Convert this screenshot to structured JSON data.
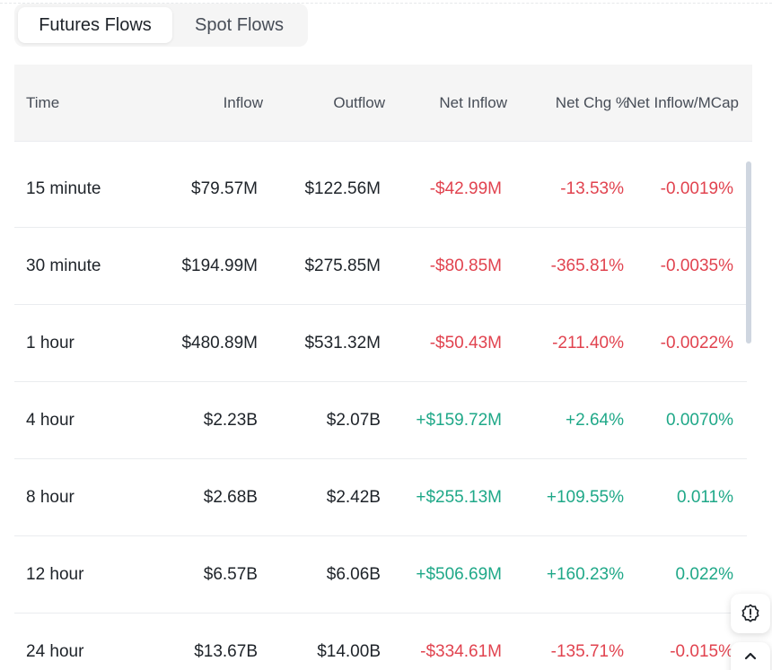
{
  "tabs": [
    {
      "label": "Futures Flows",
      "active": true
    },
    {
      "label": "Spot Flows",
      "active": false
    }
  ],
  "table": {
    "headers": {
      "time": "Time",
      "inflow": "Inflow",
      "outflow": "Outflow",
      "net_inflow": "Net Inflow",
      "net_chg": "Net Chg %",
      "net_mcap": "Net Inflow/MCap"
    },
    "rows": [
      {
        "time": "15 minute",
        "inflow": "$79.57M",
        "outflow": "$122.56M",
        "net_inflow": "-$42.99M",
        "net_chg": "-13.53%",
        "net_mcap": "-0.0019%",
        "trend": "neg"
      },
      {
        "time": "30 minute",
        "inflow": "$194.99M",
        "outflow": "$275.85M",
        "net_inflow": "-$80.85M",
        "net_chg": "-365.81%",
        "net_mcap": "-0.0035%",
        "trend": "neg"
      },
      {
        "time": "1 hour",
        "inflow": "$480.89M",
        "outflow": "$531.32M",
        "net_inflow": "-$50.43M",
        "net_chg": "-211.40%",
        "net_mcap": "-0.0022%",
        "trend": "neg"
      },
      {
        "time": "4 hour",
        "inflow": "$2.23B",
        "outflow": "$2.07B",
        "net_inflow": "+$159.72M",
        "net_chg": "+2.64%",
        "net_mcap": "0.0070%",
        "trend": "pos"
      },
      {
        "time": "8 hour",
        "inflow": "$2.68B",
        "outflow": "$2.42B",
        "net_inflow": "+$255.13M",
        "net_chg": "+109.55%",
        "net_mcap": "0.011%",
        "trend": "pos"
      },
      {
        "time": "12 hour",
        "inflow": "$6.57B",
        "outflow": "$6.06B",
        "net_inflow": "+$506.69M",
        "net_chg": "+160.23%",
        "net_mcap": "0.022%",
        "trend": "pos"
      },
      {
        "time": "24 hour",
        "inflow": "$13.67B",
        "outflow": "$14.00B",
        "net_inflow": "-$334.61M",
        "net_chg": "-135.71%",
        "net_mcap": "-0.015%",
        "trend": "neg"
      }
    ]
  },
  "icons": {
    "feedback": "alert-badge-icon",
    "back_to_top": "chevron-up-icon"
  },
  "colors": {
    "negative": "#e1434f",
    "positive": "#1fa888",
    "header_bg": "#f5f5f5"
  }
}
